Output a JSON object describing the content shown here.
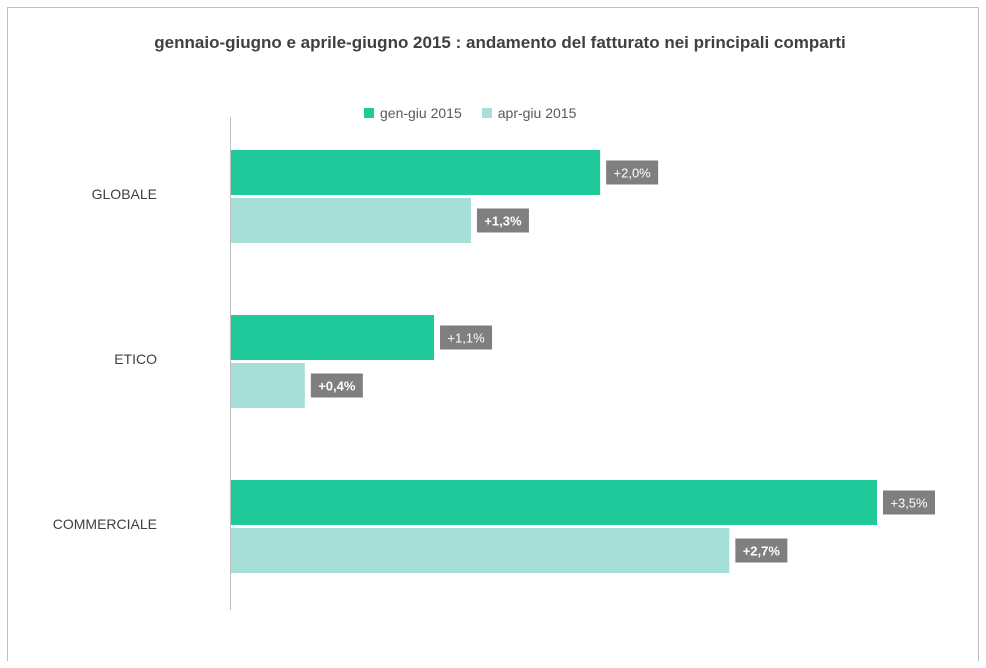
{
  "chart_data": {
    "type": "bar",
    "orientation": "horizontal",
    "title": "gennaio-giugno e aprile-giugno 2015 : andamento del fatturato nei principali comparti",
    "categories": [
      "GLOBALE",
      "ETICO",
      "COMMERCIALE"
    ],
    "series": [
      {
        "name": "gen-giu 2015",
        "color": "#1fc99a",
        "values": [
          2.0,
          1.1,
          3.5
        ],
        "labels": [
          "+2,0%",
          "+1,1%",
          "+3,5%"
        ]
      },
      {
        "name": "apr-giu 2015",
        "color": "#a6ded8",
        "values": [
          1.3,
          0.4,
          2.7
        ],
        "labels": [
          "+1,3%",
          "+0,4%",
          "+2,7%"
        ]
      }
    ],
    "xlim": [
      0,
      3.5
    ],
    "legend_position": "top",
    "grid": false,
    "data_label_background": "#7f7f7f"
  }
}
